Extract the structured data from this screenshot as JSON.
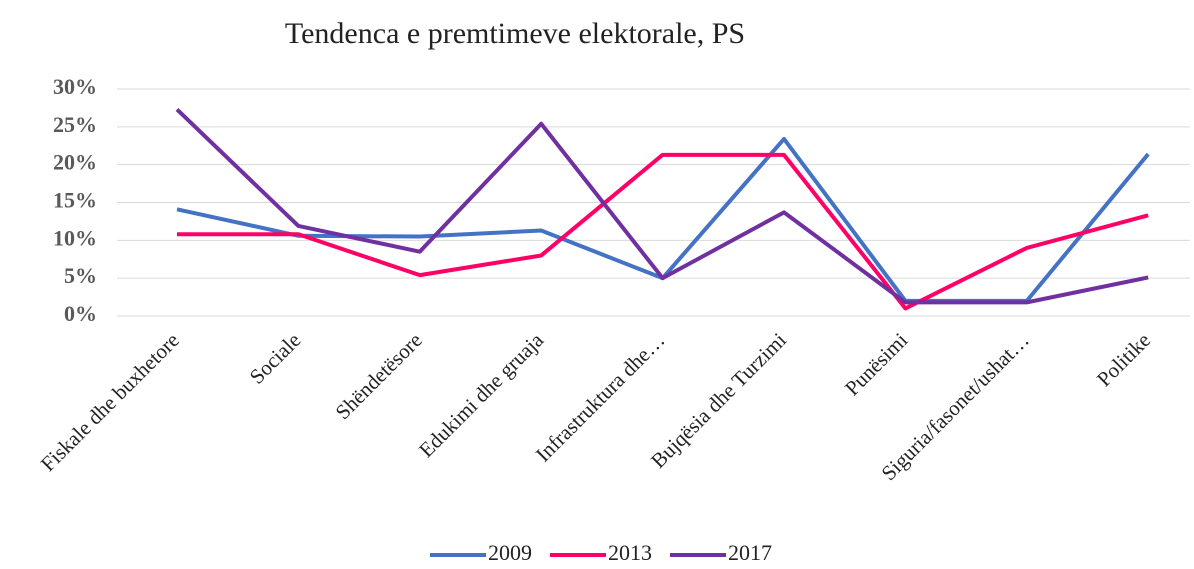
{
  "chart_data": {
    "type": "line",
    "title": "Tendenca e premtimeve elektorale, PS",
    "categories": [
      "Fiskale dhe buxhetore",
      "Sociale",
      "Shëndetësore",
      "Edukimi dhe gruaja",
      "Infrastruktura dhe…",
      "Bujqësia dhe Turzimi",
      "Punësimi",
      "Siguria/fasonet/ushat…",
      "Politike"
    ],
    "series": [
      {
        "name": "2009",
        "color": "#4472c4",
        "values": [
          14.1,
          10.6,
          10.5,
          11.3,
          5,
          23.4,
          2,
          2,
          21.4
        ]
      },
      {
        "name": "2013",
        "color": "#ff0066",
        "values": [
          10.8,
          10.8,
          5.4,
          8,
          21.3,
          21.3,
          1,
          9,
          13.3
        ]
      },
      {
        "name": "2017",
        "color": "#7030a0",
        "values": [
          27.3,
          11.9,
          8.5,
          25.4,
          5,
          13.7,
          1.8,
          1.8,
          5.1
        ]
      }
    ],
    "ylim": [
      0,
      30
    ],
    "yticks": [
      {
        "value": 0,
        "label": "0%"
      },
      {
        "value": 5,
        "label": "5%"
      },
      {
        "value": 10,
        "label": "10%"
      },
      {
        "value": 15,
        "label": "15%"
      },
      {
        "value": 20,
        "label": "20%"
      },
      {
        "value": 25,
        "label": "25%"
      },
      {
        "value": 30,
        "label": "30%"
      }
    ],
    "grid": true,
    "legend": "bottom"
  }
}
